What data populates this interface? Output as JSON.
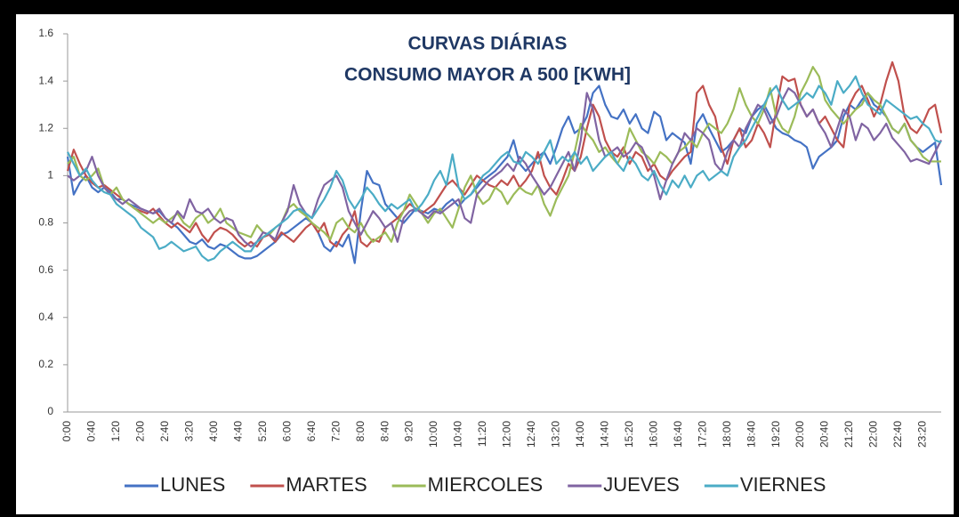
{
  "chart_data": {
    "type": "line",
    "title": "CURVAS DIÁRIAS",
    "subtitle": "CONSUMO MAYOR A 500 [KWH]",
    "categories": [
      "0:00",
      null,
      null,
      null,
      "0:40",
      null,
      null,
      null,
      "1:20",
      null,
      null,
      null,
      "2:00",
      null,
      null,
      null,
      "2:40",
      null,
      null,
      null,
      "3:20",
      null,
      null,
      null,
      "4:00",
      null,
      null,
      null,
      "4:40",
      null,
      null,
      null,
      "5:20",
      null,
      null,
      null,
      "6:00",
      null,
      null,
      null,
      "6:40",
      null,
      null,
      null,
      "7:20",
      null,
      null,
      null,
      "8:00",
      null,
      null,
      null,
      "8:40",
      null,
      null,
      null,
      "9:20",
      null,
      null,
      null,
      "10:00",
      null,
      null,
      null,
      "10:40",
      null,
      null,
      null,
      "11:20",
      null,
      null,
      null,
      "12:00",
      null,
      null,
      null,
      "12:40",
      null,
      null,
      null,
      "13:20",
      null,
      null,
      null,
      "14:00",
      null,
      null,
      null,
      "14:40",
      null,
      null,
      null,
      "15:20",
      null,
      null,
      null,
      "16:00",
      null,
      null,
      null,
      "16:40",
      null,
      null,
      null,
      "17:20",
      null,
      null,
      null,
      "18:00",
      null,
      null,
      null,
      "18:40",
      null,
      null,
      null,
      "19:20",
      null,
      null,
      null,
      "20:00",
      null,
      null,
      null,
      "20:40",
      null,
      null,
      null,
      "21:20",
      null,
      null,
      null,
      "22:00",
      null,
      null,
      null,
      "22:40",
      null,
      null,
      null,
      "23:20",
      null,
      null,
      null
    ],
    "series": [
      {
        "name": "LUNES",
        "color": "#4472c4",
        "values": [
          1.08,
          0.92,
          0.97,
          1.0,
          0.95,
          0.93,
          0.95,
          0.93,
          0.9,
          0.9,
          0.88,
          0.87,
          0.86,
          0.85,
          0.84,
          0.85,
          0.82,
          0.8,
          0.78,
          0.75,
          0.72,
          0.71,
          0.73,
          0.7,
          0.69,
          0.71,
          0.7,
          0.68,
          0.66,
          0.65,
          0.65,
          0.66,
          0.68,
          0.7,
          0.72,
          0.75,
          0.76,
          0.78,
          0.8,
          0.82,
          0.8,
          0.76,
          0.7,
          0.68,
          0.72,
          0.7,
          0.75,
          0.63,
          0.85,
          1.02,
          0.97,
          0.96,
          0.88,
          0.85,
          0.82,
          0.8,
          0.83,
          0.86,
          0.85,
          0.84,
          0.86,
          0.85,
          0.88,
          0.9,
          0.87,
          0.9,
          0.92,
          0.95,
          0.98,
          1.0,
          1.02,
          1.05,
          1.08,
          1.15,
          1.05,
          1.02,
          1.05,
          1.08,
          1.1,
          1.05,
          1.12,
          1.2,
          1.25,
          1.18,
          1.2,
          1.25,
          1.35,
          1.38,
          1.3,
          1.25,
          1.24,
          1.28,
          1.22,
          1.26,
          1.2,
          1.18,
          1.27,
          1.25,
          1.15,
          1.18,
          1.16,
          1.14,
          1.05,
          1.22,
          1.26,
          1.2,
          1.15,
          1.1,
          1.12,
          1.15,
          1.2,
          1.18,
          1.25,
          1.28,
          1.3,
          1.25,
          1.2,
          1.18,
          1.17,
          1.15,
          1.14,
          1.12,
          1.03,
          1.08,
          1.1,
          1.12,
          1.15,
          1.25,
          1.3,
          1.28,
          1.32,
          1.35,
          1.3,
          1.28,
          1.25,
          1.2,
          1.18,
          1.22,
          1.15,
          1.12,
          1.1,
          1.12,
          1.14,
          0.96
        ]
      },
      {
        "name": "MARTES",
        "color": "#c0504d",
        "values": [
          1.02,
          1.11,
          1.05,
          1.0,
          0.97,
          0.95,
          0.96,
          0.94,
          0.92,
          0.9,
          0.88,
          0.86,
          0.85,
          0.84,
          0.86,
          0.83,
          0.8,
          0.78,
          0.8,
          0.78,
          0.76,
          0.8,
          0.75,
          0.72,
          0.76,
          0.78,
          0.77,
          0.75,
          0.72,
          0.7,
          0.72,
          0.7,
          0.74,
          0.75,
          0.72,
          0.76,
          0.74,
          0.72,
          0.75,
          0.78,
          0.8,
          0.76,
          0.8,
          0.72,
          0.7,
          0.75,
          0.78,
          0.85,
          0.72,
          0.7,
          0.73,
          0.72,
          0.78,
          0.8,
          0.82,
          0.85,
          0.88,
          0.86,
          0.84,
          0.86,
          0.88,
          0.92,
          0.96,
          0.98,
          0.95,
          0.92,
          0.96,
          1.0,
          0.98,
          0.96,
          0.95,
          0.98,
          0.96,
          1.0,
          0.95,
          0.98,
          1.02,
          1.1,
          1.0,
          0.95,
          0.92,
          0.98,
          1.05,
          1.02,
          1.08,
          1.2,
          1.3,
          1.25,
          1.15,
          1.1,
          1.08,
          1.12,
          1.05,
          1.1,
          1.08,
          1.02,
          1.05,
          1.0,
          0.98,
          1.02,
          1.05,
          1.08,
          1.1,
          1.35,
          1.38,
          1.3,
          1.25,
          1.12,
          1.05,
          1.15,
          1.2,
          1.12,
          1.15,
          1.22,
          1.18,
          1.12,
          1.28,
          1.42,
          1.4,
          1.41,
          1.3,
          1.25,
          1.28,
          1.22,
          1.25,
          1.2,
          1.15,
          1.12,
          1.3,
          1.35,
          1.38,
          1.32,
          1.25,
          1.3,
          1.4,
          1.48,
          1.4,
          1.25,
          1.2,
          1.18,
          1.22,
          1.28,
          1.3,
          1.18
        ]
      },
      {
        "name": "MIERCOLES",
        "color": "#9bbb59",
        "values": [
          1.05,
          1.08,
          1.0,
          0.98,
          1.0,
          1.03,
          0.95,
          0.92,
          0.95,
          0.9,
          0.88,
          0.86,
          0.84,
          0.82,
          0.8,
          0.82,
          0.8,
          0.82,
          0.84,
          0.8,
          0.78,
          0.82,
          0.84,
          0.8,
          0.82,
          0.86,
          0.8,
          0.78,
          0.76,
          0.75,
          0.74,
          0.79,
          0.76,
          0.75,
          0.78,
          0.8,
          0.86,
          0.88,
          0.85,
          0.83,
          0.8,
          0.78,
          0.76,
          0.73,
          0.8,
          0.82,
          0.78,
          0.76,
          0.8,
          0.75,
          0.72,
          0.74,
          0.76,
          0.72,
          0.8,
          0.85,
          0.92,
          0.88,
          0.84,
          0.8,
          0.84,
          0.86,
          0.82,
          0.78,
          0.86,
          0.95,
          1.0,
          0.92,
          0.88,
          0.9,
          0.95,
          0.93,
          0.88,
          0.92,
          0.95,
          0.93,
          0.92,
          0.96,
          0.88,
          0.83,
          0.9,
          0.95,
          1.0,
          1.1,
          1.22,
          1.18,
          1.15,
          1.1,
          1.12,
          1.08,
          1.05,
          1.1,
          1.2,
          1.15,
          1.1,
          1.08,
          1.05,
          1.1,
          1.08,
          1.05,
          1.1,
          1.12,
          1.15,
          1.12,
          1.18,
          1.22,
          1.2,
          1.18,
          1.22,
          1.28,
          1.37,
          1.3,
          1.25,
          1.22,
          1.28,
          1.37,
          1.25,
          1.2,
          1.18,
          1.25,
          1.35,
          1.4,
          1.46,
          1.42,
          1.32,
          1.28,
          1.25,
          1.22,
          1.25,
          1.28,
          1.3,
          1.35,
          1.32,
          1.3,
          1.25,
          1.2,
          1.18,
          1.22,
          1.15,
          1.12,
          1.08,
          1.06,
          1.06,
          1.06
        ]
      },
      {
        "name": "JUEVES",
        "color": "#8064a2",
        "values": [
          1.0,
          0.98,
          1.0,
          1.02,
          1.08,
          1.0,
          0.95,
          0.92,
          0.9,
          0.88,
          0.9,
          0.88,
          0.86,
          0.85,
          0.84,
          0.86,
          0.82,
          0.8,
          0.85,
          0.82,
          0.9,
          0.85,
          0.84,
          0.86,
          0.82,
          0.8,
          0.82,
          0.81,
          0.75,
          0.72,
          0.7,
          0.72,
          0.76,
          0.75,
          0.73,
          0.8,
          0.85,
          0.96,
          0.88,
          0.84,
          0.82,
          0.9,
          0.96,
          0.98,
          1.0,
          0.95,
          0.85,
          0.8,
          0.75,
          0.8,
          0.85,
          0.82,
          0.78,
          0.8,
          0.72,
          0.82,
          0.85,
          0.86,
          0.84,
          0.82,
          0.85,
          0.84,
          0.86,
          0.88,
          0.9,
          0.82,
          0.8,
          0.92,
          0.95,
          0.98,
          1.0,
          1.02,
          1.05,
          1.02,
          1.08,
          1.05,
          1.0,
          0.96,
          0.92,
          0.95,
          1.0,
          1.05,
          1.1,
          1.02,
          1.15,
          1.35,
          1.28,
          1.15,
          1.08,
          1.1,
          1.12,
          1.08,
          1.1,
          1.14,
          1.12,
          1.06,
          1.0,
          0.9,
          0.98,
          1.05,
          1.1,
          1.18,
          1.15,
          1.2,
          1.18,
          1.15,
          1.05,
          1.02,
          1.1,
          1.15,
          1.12,
          1.2,
          1.25,
          1.3,
          1.28,
          1.22,
          1.25,
          1.32,
          1.37,
          1.35,
          1.3,
          1.25,
          1.28,
          1.22,
          1.18,
          1.12,
          1.2,
          1.28,
          1.25,
          1.15,
          1.22,
          1.2,
          1.15,
          1.18,
          1.22,
          1.16,
          1.13,
          1.1,
          1.06,
          1.07,
          1.06,
          1.05,
          1.1,
          1.15
        ]
      },
      {
        "name": "VIERNES",
        "color": "#4bacc6",
        "values": [
          1.1,
          1.05,
          1.0,
          1.03,
          0.98,
          0.95,
          0.93,
          0.92,
          0.88,
          0.86,
          0.84,
          0.82,
          0.78,
          0.76,
          0.74,
          0.69,
          0.7,
          0.72,
          0.7,
          0.68,
          0.69,
          0.7,
          0.66,
          0.64,
          0.65,
          0.68,
          0.7,
          0.72,
          0.7,
          0.68,
          0.68,
          0.72,
          0.74,
          0.76,
          0.78,
          0.8,
          0.82,
          0.85,
          0.86,
          0.84,
          0.82,
          0.86,
          0.9,
          0.95,
          1.02,
          0.98,
          0.9,
          0.86,
          0.9,
          0.95,
          0.92,
          0.88,
          0.85,
          0.88,
          0.86,
          0.88,
          0.9,
          0.85,
          0.88,
          0.92,
          0.98,
          1.02,
          0.96,
          1.09,
          0.95,
          0.9,
          0.92,
          0.96,
          1.0,
          1.02,
          1.05,
          1.08,
          1.1,
          1.06,
          1.05,
          1.1,
          1.08,
          1.05,
          1.1,
          1.15,
          1.05,
          1.08,
          1.06,
          1.1,
          1.05,
          1.08,
          1.02,
          1.05,
          1.08,
          1.1,
          1.05,
          1.02,
          1.08,
          1.05,
          1.0,
          0.98,
          1.02,
          0.96,
          0.92,
          0.98,
          0.95,
          1.0,
          0.95,
          1.0,
          1.02,
          0.98,
          1.0,
          1.02,
          1.0,
          1.08,
          1.12,
          1.15,
          1.2,
          1.25,
          1.3,
          1.35,
          1.38,
          1.32,
          1.28,
          1.3,
          1.32,
          1.35,
          1.33,
          1.38,
          1.35,
          1.3,
          1.4,
          1.35,
          1.38,
          1.42,
          1.35,
          1.3,
          1.28,
          1.26,
          1.32,
          1.3,
          1.28,
          1.26,
          1.24,
          1.25,
          1.22,
          1.2,
          1.15,
          1.14
        ]
      }
    ],
    "ylim": [
      0,
      1.6
    ],
    "yticks": [
      0,
      0.2,
      0.4,
      0.6,
      0.8,
      1,
      1.2,
      1.4,
      1.6
    ],
    "grid": false,
    "legend": "bottom"
  }
}
